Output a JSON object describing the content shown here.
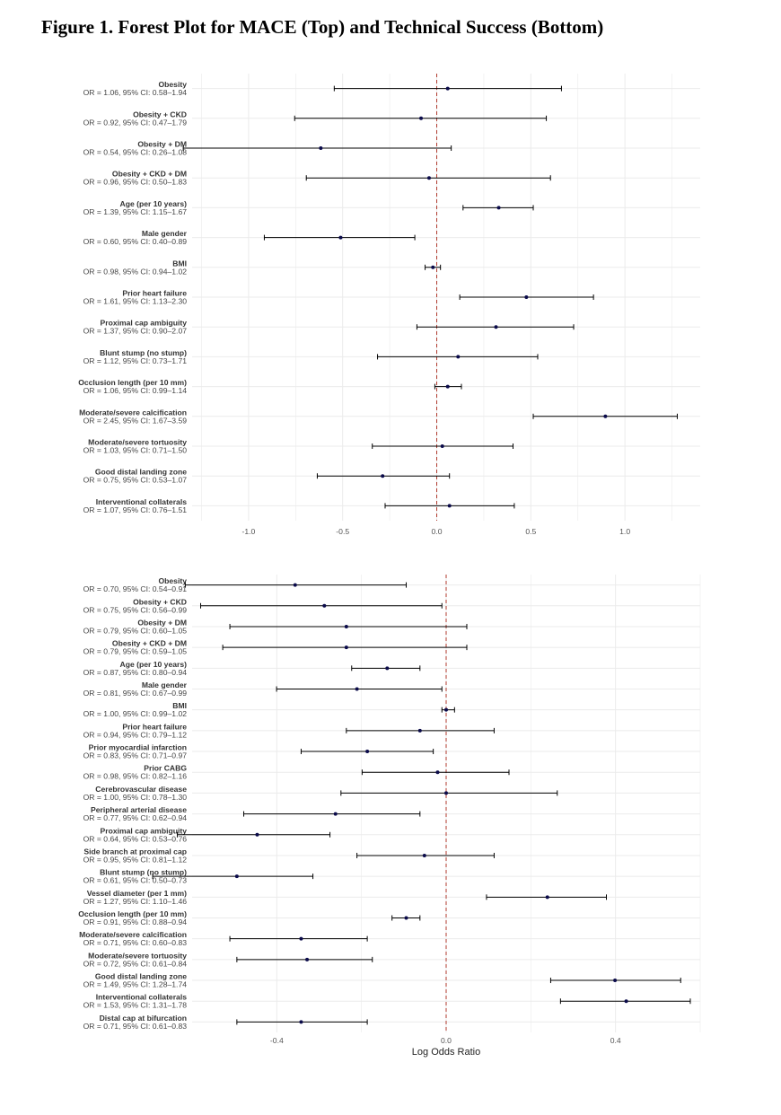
{
  "figure": {
    "title": "Figure 1. Forest Plot for MACE (Top) and Technical Success (Bottom)"
  },
  "chart_data": [
    {
      "type": "forest",
      "name": "MACE",
      "xlabel": "",
      "xlim": [
        -1.3,
        1.4
      ],
      "xticks": [
        -1.0,
        -0.5,
        0.0,
        0.5,
        1.0
      ],
      "xtick_labels": [
        "-1.0",
        "-0.5",
        "0.0",
        "0.5",
        "1.0"
      ],
      "reference_line": 0,
      "rows": [
        {
          "label": "Obesity",
          "text": "OR = 1.06, 95% CI: 0.58–1.94",
          "or": 1.06,
          "lo": 0.58,
          "hi": 1.94
        },
        {
          "label": "Obesity + CKD",
          "text": "OR = 0.92, 95% CI: 0.47–1.79",
          "or": 0.92,
          "lo": 0.47,
          "hi": 1.79
        },
        {
          "label": "Obesity + DM",
          "text": "OR = 0.54, 95% CI: 0.26–1.08",
          "or": 0.54,
          "lo": 0.26,
          "hi": 1.08
        },
        {
          "label": "Obesity + CKD + DM",
          "text": "OR = 0.96, 95% CI: 0.50–1.83",
          "or": 0.96,
          "lo": 0.5,
          "hi": 1.83
        },
        {
          "label": "Age (per 10 years)",
          "text": "OR = 1.39, 95% CI: 1.15–1.67",
          "or": 1.39,
          "lo": 1.15,
          "hi": 1.67
        },
        {
          "label": "Male gender",
          "text": "OR = 0.60, 95% CI: 0.40–0.89",
          "or": 0.6,
          "lo": 0.4,
          "hi": 0.89
        },
        {
          "label": "BMI",
          "text": "OR = 0.98, 95% CI: 0.94–1.02",
          "or": 0.98,
          "lo": 0.94,
          "hi": 1.02
        },
        {
          "label": "Prior heart failure",
          "text": "OR = 1.61, 95% CI: 1.13–2.30",
          "or": 1.61,
          "lo": 1.13,
          "hi": 2.3
        },
        {
          "label": "Proximal cap ambiguity",
          "text": "OR = 1.37, 95% CI: 0.90–2.07",
          "or": 1.37,
          "lo": 0.9,
          "hi": 2.07
        },
        {
          "label": "Blunt stump (no stump)",
          "text": "OR = 1.12, 95% CI: 0.73–1.71",
          "or": 1.12,
          "lo": 0.73,
          "hi": 1.71
        },
        {
          "label": "Occlusion length (per 10 mm)",
          "text": "OR = 1.06, 95% CI: 0.99–1.14",
          "or": 1.06,
          "lo": 0.99,
          "hi": 1.14
        },
        {
          "label": "Moderate/severe calcification",
          "text": "OR = 2.45, 95% CI: 1.67–3.59",
          "or": 2.45,
          "lo": 1.67,
          "hi": 3.59
        },
        {
          "label": "Moderate/severe tortuosity",
          "text": "OR = 1.03, 95% CI: 0.71–1.50",
          "or": 1.03,
          "lo": 0.71,
          "hi": 1.5
        },
        {
          "label": "Good distal landing zone",
          "text": "OR = 0.75, 95% CI: 0.53–1.07",
          "or": 0.75,
          "lo": 0.53,
          "hi": 1.07
        },
        {
          "label": "Interventional collaterals",
          "text": "OR = 1.07, 95% CI: 0.76–1.51",
          "or": 1.07,
          "lo": 0.76,
          "hi": 1.51
        }
      ]
    },
    {
      "type": "forest",
      "name": "Technical Success",
      "xlabel": "Log Odds Ratio",
      "xlim": [
        -0.6,
        0.6
      ],
      "xticks": [
        -0.4,
        0.0,
        0.4
      ],
      "xtick_labels": [
        "-0.4",
        "0.0",
        "0.4"
      ],
      "reference_line": 0,
      "rows": [
        {
          "label": "Obesity",
          "text": "OR = 0.70, 95% CI: 0.54–0.91",
          "or": 0.7,
          "lo": 0.54,
          "hi": 0.91
        },
        {
          "label": "Obesity + CKD",
          "text": "OR = 0.75, 95% CI: 0.56–0.99",
          "or": 0.75,
          "lo": 0.56,
          "hi": 0.99
        },
        {
          "label": "Obesity + DM",
          "text": "OR = 0.79, 95% CI: 0.60–1.05",
          "or": 0.79,
          "lo": 0.6,
          "hi": 1.05
        },
        {
          "label": "Obesity + CKD + DM",
          "text": "OR = 0.79, 95% CI: 0.59–1.05",
          "or": 0.79,
          "lo": 0.59,
          "hi": 1.05
        },
        {
          "label": "Age (per 10 years)",
          "text": "OR = 0.87, 95% CI: 0.80–0.94",
          "or": 0.87,
          "lo": 0.8,
          "hi": 0.94
        },
        {
          "label": "Male gender",
          "text": "OR = 0.81, 95% CI: 0.67–0.99",
          "or": 0.81,
          "lo": 0.67,
          "hi": 0.99
        },
        {
          "label": "BMI",
          "text": "OR = 1.00, 95% CI: 0.99–1.02",
          "or": 1.0,
          "lo": 0.99,
          "hi": 1.02
        },
        {
          "label": "Prior heart failure",
          "text": "OR = 0.94, 95% CI: 0.79–1.12",
          "or": 0.94,
          "lo": 0.79,
          "hi": 1.12
        },
        {
          "label": "Prior myocardial infarction",
          "text": "OR = 0.83, 95% CI: 0.71–0.97",
          "or": 0.83,
          "lo": 0.71,
          "hi": 0.97
        },
        {
          "label": "Prior CABG",
          "text": "OR = 0.98, 95% CI: 0.82–1.16",
          "or": 0.98,
          "lo": 0.82,
          "hi": 1.16
        },
        {
          "label": "Cerebrovascular disease",
          "text": "OR = 1.00, 95% CI: 0.78–1.30",
          "or": 1.0,
          "lo": 0.78,
          "hi": 1.3
        },
        {
          "label": "Peripheral arterial disease",
          "text": "OR = 0.77, 95% CI: 0.62–0.94",
          "or": 0.77,
          "lo": 0.62,
          "hi": 0.94
        },
        {
          "label": "Proximal cap ambiguity",
          "text": "OR = 0.64, 95% CI: 0.53–0.76",
          "or": 0.64,
          "lo": 0.53,
          "hi": 0.76
        },
        {
          "label": "Side branch at proximal cap",
          "text": "OR = 0.95, 95% CI: 0.81–1.12",
          "or": 0.95,
          "lo": 0.81,
          "hi": 1.12
        },
        {
          "label": "Blunt stump (no stump)",
          "text": "OR = 0.61, 95% CI: 0.50–0.73",
          "or": 0.61,
          "lo": 0.5,
          "hi": 0.73
        },
        {
          "label": "Vessel diameter (per 1 mm)",
          "text": "OR = 1.27, 95% CI: 1.10–1.46",
          "or": 1.27,
          "lo": 1.1,
          "hi": 1.46
        },
        {
          "label": "Occlusion length (per 10 mm)",
          "text": "OR = 0.91, 95% CI: 0.88–0.94",
          "or": 0.91,
          "lo": 0.88,
          "hi": 0.94
        },
        {
          "label": "Moderate/severe calcification",
          "text": "OR = 0.71, 95% CI: 0.60–0.83",
          "or": 0.71,
          "lo": 0.6,
          "hi": 0.83
        },
        {
          "label": "Moderate/severe tortuosity",
          "text": "OR = 0.72, 95% CI: 0.61–0.84",
          "or": 0.72,
          "lo": 0.61,
          "hi": 0.84
        },
        {
          "label": "Good distal landing zone",
          "text": "OR = 1.49, 95% CI: 1.28–1.74",
          "or": 1.49,
          "lo": 1.28,
          "hi": 1.74
        },
        {
          "label": "Interventional collaterals",
          "text": "OR = 1.53, 95% CI: 1.31–1.78",
          "or": 1.53,
          "lo": 1.31,
          "hi": 1.78
        },
        {
          "label": "Distal cap at bifurcation",
          "text": "OR = 0.71, 95% CI: 0.61–0.83",
          "or": 0.71,
          "lo": 0.61,
          "hi": 0.83
        }
      ]
    }
  ],
  "colors": {
    "point": "#0b0b4a",
    "ci": "#000000",
    "reference": "#b03a2e",
    "grid": "#ebebeb"
  }
}
